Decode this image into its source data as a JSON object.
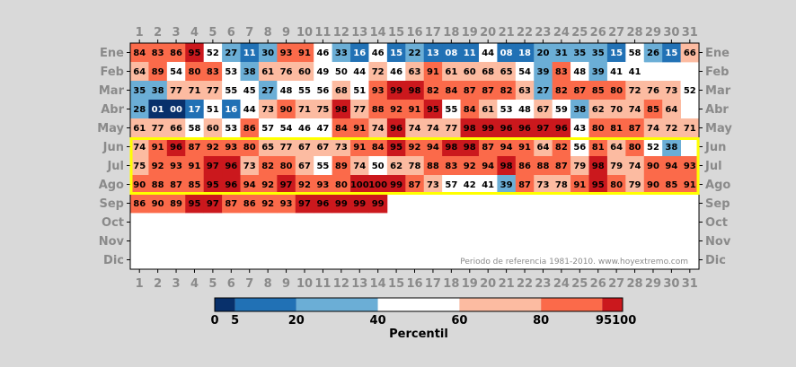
{
  "chart_data": {
    "type": "heatmap",
    "x": [
      1,
      2,
      3,
      4,
      5,
      6,
      7,
      8,
      9,
      10,
      11,
      12,
      13,
      14,
      15,
      16,
      17,
      18,
      19,
      20,
      21,
      22,
      23,
      24,
      25,
      26,
      27,
      28,
      29,
      30,
      31
    ],
    "y": [
      "Ene",
      "Feb",
      "Mar",
      "Abr",
      "May",
      "Jun",
      "Jul",
      "Ago",
      "Sep",
      "Oct",
      "Nov",
      "Dic"
    ],
    "values": [
      [
        84,
        83,
        86,
        95,
        52,
        27,
        11,
        30,
        93,
        91,
        46,
        33,
        16,
        46,
        15,
        22,
        13,
        8,
        11,
        44,
        8,
        18,
        20,
        31,
        35,
        35,
        15,
        58,
        26,
        15,
        66
      ],
      [
        64,
        89,
        54,
        80,
        83,
        53,
        38,
        61,
        76,
        60,
        49,
        50,
        44,
        72,
        46,
        63,
        91,
        61,
        60,
        68,
        65,
        54,
        39,
        83,
        48,
        39,
        41,
        41,
        null,
        null,
        null
      ],
      [
        35,
        38,
        77,
        71,
        77,
        55,
        45,
        27,
        48,
        55,
        56,
        68,
        51,
        93,
        99,
        98,
        82,
        84,
        87,
        87,
        82,
        63,
        27,
        82,
        87,
        85,
        80,
        72,
        76,
        73,
        52
      ],
      [
        28,
        1,
        0,
        17,
        51,
        16,
        44,
        73,
        90,
        71,
        75,
        98,
        77,
        88,
        92,
        91,
        95,
        55,
        84,
        61,
        53,
        48,
        67,
        59,
        38,
        62,
        70,
        74,
        85,
        64,
        null
      ],
      [
        61,
        77,
        66,
        58,
        60,
        53,
        86,
        57,
        54,
        46,
        47,
        84,
        91,
        74,
        96,
        74,
        74,
        77,
        98,
        99,
        96,
        96,
        97,
        96,
        43,
        80,
        81,
        87,
        74,
        72,
        71
      ],
      [
        74,
        91,
        96,
        87,
        92,
        93,
        80,
        65,
        77,
        67,
        67,
        73,
        91,
        84,
        95,
        92,
        94,
        98,
        98,
        87,
        94,
        91,
        64,
        82,
        56,
        81,
        64,
        80,
        52,
        38,
        null
      ],
      [
        75,
        92,
        93,
        91,
        97,
        96,
        73,
        82,
        80,
        67,
        55,
        89,
        74,
        50,
        62,
        78,
        88,
        83,
        92,
        94,
        98,
        86,
        88,
        87,
        79,
        98,
        79,
        74,
        90,
        94,
        93
      ],
      [
        90,
        88,
        87,
        85,
        95,
        96,
        94,
        92,
        97,
        92,
        93,
        80,
        100,
        100,
        99,
        87,
        73,
        57,
        42,
        41,
        39,
        87,
        73,
        78,
        91,
        95,
        80,
        79,
        90,
        85,
        91
      ],
      [
        86,
        90,
        89,
        95,
        97,
        87,
        86,
        92,
        93,
        97,
        96,
        99,
        99,
        99,
        null,
        null,
        null,
        null,
        null,
        null,
        null,
        null,
        null,
        null,
        null,
        null,
        null,
        null,
        null,
        null,
        null
      ],
      [
        null,
        null,
        null,
        null,
        null,
        null,
        null,
        null,
        null,
        null,
        null,
        null,
        null,
        null,
        null,
        null,
        null,
        null,
        null,
        null,
        null,
        null,
        null,
        null,
        null,
        null,
        null,
        null,
        null,
        null,
        null
      ],
      [
        null,
        null,
        null,
        null,
        null,
        null,
        null,
        null,
        null,
        null,
        null,
        null,
        null,
        null,
        null,
        null,
        null,
        null,
        null,
        null,
        null,
        null,
        null,
        null,
        null,
        null,
        null,
        null,
        null,
        null,
        null
      ],
      [
        null,
        null,
        null,
        null,
        null,
        null,
        null,
        null,
        null,
        null,
        null,
        null,
        null,
        null,
        null,
        null,
        null,
        null,
        null,
        null,
        null,
        null,
        null,
        null,
        null,
        null,
        null,
        null,
        null,
        null,
        null
      ]
    ],
    "highlighted_rows": [
      "Jun",
      "Jul",
      "Ago"
    ],
    "highlight_color": "#ffff00",
    "colorbar": {
      "label": "Percentil",
      "bounds": [
        0,
        5,
        20,
        40,
        60,
        80,
        95,
        100
      ],
      "colors": [
        "#08306b",
        "#2171b5",
        "#6baed6",
        "#ffffff",
        "#fcbba1",
        "#fb6a4a",
        "#cb181d"
      ],
      "tick_labels": [
        "0",
        "5",
        "20",
        "40",
        "60",
        "80",
        "95100"
      ]
    },
    "annotation": "Periodo de referencia 1981-2010. www.hoyextremo.com",
    "tick_color": "#8a8a8a"
  }
}
